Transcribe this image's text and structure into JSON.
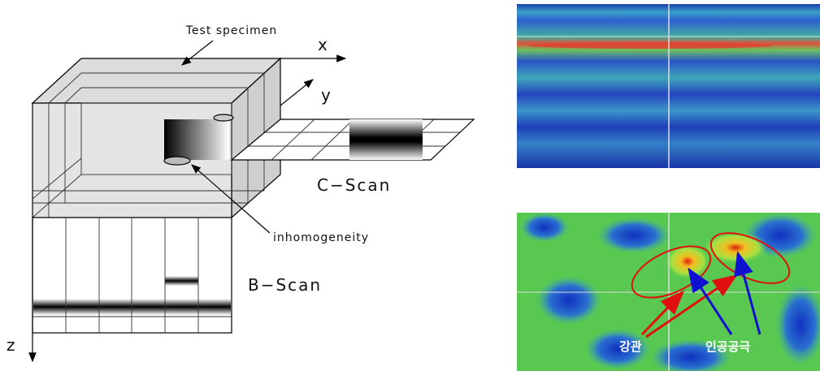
{
  "diagram": {
    "specimen_label": "Test specimen",
    "x_axis": "x",
    "y_axis": "y",
    "z_axis": "z",
    "c_scan": "C−Scan",
    "b_scan": "B−Scan",
    "defect_label": "inhomogeneity"
  },
  "images": {
    "steel_pipe_label": "강관",
    "artificial_void_label": "인공공극"
  }
}
